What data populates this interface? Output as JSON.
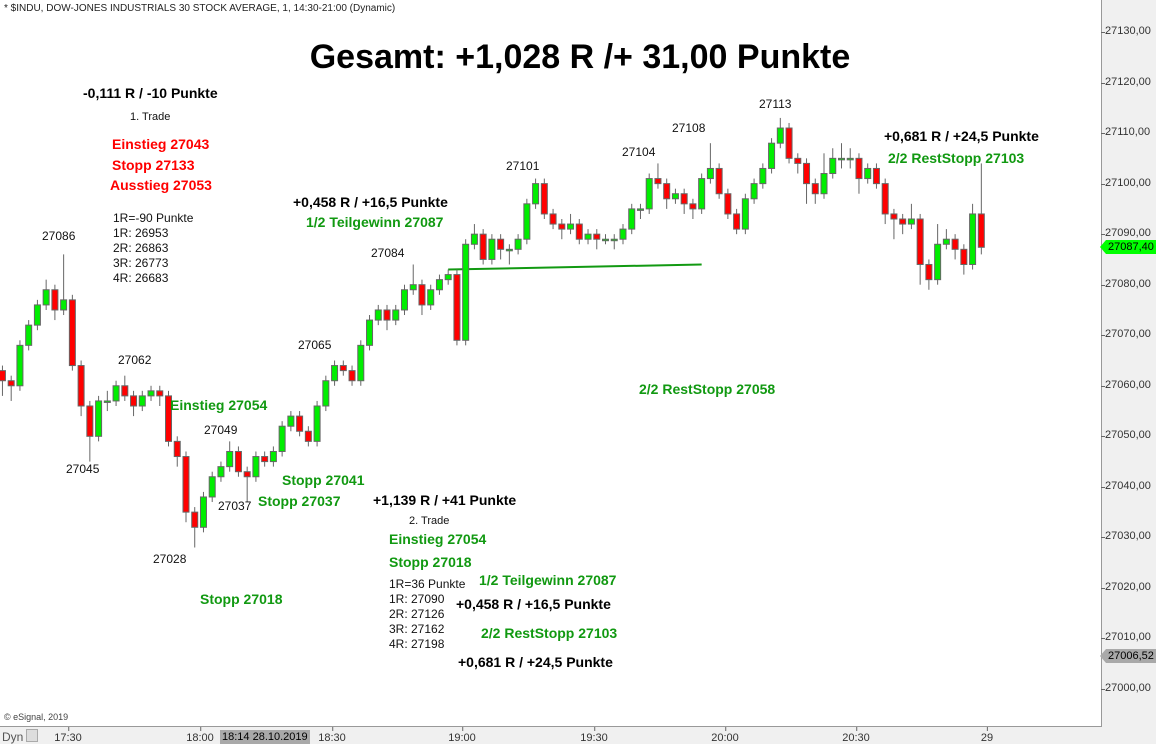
{
  "header": {
    "title": "* $INDU, DOW-JONES INDUSTRIALS 30 STOCK AVERAGE, 1, 14:30-21:00 (Dynamic)"
  },
  "footer": {
    "copyright": "© eSignal, 2019",
    "dyn_label": "Dyn",
    "cursor_time": "18:14 28.10.2019"
  },
  "colors": {
    "up": "#00ee00",
    "down": "#ff0000",
    "wick": "#666666",
    "trendline": "#119911",
    "last_price_tag": "#00ff00",
    "other_tag": "#a9a9a9"
  },
  "annotations": {
    "title": "Gesamt: +1,028 R /+ 31,00 Punkte",
    "trade1": {
      "result": "-0,111 R / -10 Punkte",
      "label": "1. Trade",
      "entry": "Einstieg 27043",
      "stop": "Stopp 27133",
      "exit": "Ausstieg 27053",
      "r_lines": [
        "1R=-90 Punkte",
        "1R: 26953",
        "2R: 26863",
        "3R: 26773",
        "4R: 26683"
      ]
    },
    "trade2": {
      "result": "+1,139 R / +41 Punkte",
      "label": "2. Trade",
      "entry": "Einstieg 27054",
      "stop": "Stopp 27018",
      "r_lines": [
        "1R=36 Punkte",
        "1R: 27090",
        "2R: 27126",
        "3R: 27162",
        "4R: 27198"
      ],
      "partial": "1/2 Teilgewinn 27087",
      "partial_result": "+0,458 R / +16,5 Punkte",
      "rest": "2/2 RestStopp 27103",
      "rest_result": "+0,681 R / +24,5 Punkte"
    },
    "chart_marks": {
      "entry": "Einstieg 27054",
      "stop_41": "Stopp 27041",
      "stop_37": "Stopp 27037",
      "stop_18": "Stopp 27018",
      "partial_result": "+0,458 R / +16,5 Punkte",
      "partial": "1/2 Teilgewinn 27087",
      "rest_58": "2/2 RestStopp 27058",
      "rest_result": "+0,681 R / +24,5 Punkte",
      "rest_103": "2/2 RestStopp 27103"
    },
    "price_labels": [
      "27086",
      "27062",
      "27045",
      "27049",
      "27037",
      "27028",
      "27065",
      "27084",
      "27101",
      "27104",
      "27108",
      "27113"
    ]
  },
  "chart_data": {
    "type": "candlestick",
    "title": "",
    "x_tick_labels": [
      "17:30",
      "18:00",
      "18:30",
      "19:00",
      "19:30",
      "20:00",
      "20:30",
      "29"
    ],
    "y_tick_labels": [
      "27130,00",
      "27120,00",
      "27110,00",
      "27100,00",
      "27090,00",
      "27080,00",
      "27070,00",
      "27060,00",
      "27050,00",
      "27040,00",
      "27030,00",
      "27020,00",
      "27010,00",
      "27000,00"
    ],
    "ylim": [
      27000,
      27130
    ],
    "grid": false,
    "last_price": "27087,40",
    "marker_price": "27006,52",
    "trendline": {
      "from": [
        "18:57",
        27083
      ],
      "to": [
        "19:55",
        27084
      ]
    },
    "start_time": "17:15",
    "interval_minutes": 2,
    "candles_ohlc": [
      [
        27063,
        27064,
        27058,
        27061
      ],
      [
        27061,
        27062,
        27057,
        27060
      ],
      [
        27060,
        27069,
        27059,
        27068
      ],
      [
        27068,
        27073,
        27067,
        27072
      ],
      [
        27072,
        27077,
        27071,
        27076
      ],
      [
        27076,
        27081,
        27075,
        27079
      ],
      [
        27079,
        27080,
        27073,
        27075
      ],
      [
        27075,
        27086,
        27074,
        27077
      ],
      [
        27077,
        27078,
        27063,
        27064
      ],
      [
        27064,
        27065,
        27054,
        27056
      ],
      [
        27056,
        27057,
        27045,
        27050
      ],
      [
        27050,
        27058,
        27049,
        27057
      ],
      [
        27057,
        27059,
        27055,
        27057
      ],
      [
        27057,
        27061,
        27056,
        27060
      ],
      [
        27060,
        27062,
        27057,
        27058
      ],
      [
        27058,
        27059,
        27054,
        27056
      ],
      [
        27056,
        27059,
        27055,
        27058
      ],
      [
        27058,
        27060,
        27057,
        27059
      ],
      [
        27059,
        27060,
        27056,
        27058
      ],
      [
        27058,
        27059,
        27048,
        27049
      ],
      [
        27049,
        27050,
        27044,
        27046
      ],
      [
        27046,
        27047,
        27033,
        27035
      ],
      [
        27035,
        27036,
        27028,
        27032
      ],
      [
        27032,
        27039,
        27031,
        27038
      ],
      [
        27038,
        27043,
        27037,
        27042
      ],
      [
        27042,
        27045,
        27041,
        27044
      ],
      [
        27044,
        27049,
        27043,
        27047
      ],
      [
        27047,
        27048,
        27042,
        27043
      ],
      [
        27043,
        27044,
        27037,
        27042
      ],
      [
        27042,
        27047,
        27041,
        27046
      ],
      [
        27046,
        27047,
        27044,
        27045
      ],
      [
        27045,
        27048,
        27044,
        27047
      ],
      [
        27047,
        27053,
        27046,
        27052
      ],
      [
        27052,
        27055,
        27051,
        27054
      ],
      [
        27054,
        27055,
        27050,
        27051
      ],
      [
        27051,
        27052,
        27048,
        27049
      ],
      [
        27049,
        27057,
        27048,
        27056
      ],
      [
        27056,
        27062,
        27055,
        27061
      ],
      [
        27061,
        27065,
        27060,
        27064
      ],
      [
        27064,
        27065,
        27062,
        27063
      ],
      [
        27063,
        27064,
        27060,
        27061
      ],
      [
        27061,
        27069,
        27060,
        27068
      ],
      [
        27068,
        27074,
        27067,
        27073
      ],
      [
        27073,
        27076,
        27072,
        27075
      ],
      [
        27075,
        27076,
        27071,
        27073
      ],
      [
        27073,
        27076,
        27072,
        27075
      ],
      [
        27075,
        27080,
        27074,
        27079
      ],
      [
        27079,
        27084,
        27078,
        27080
      ],
      [
        27080,
        27081,
        27074,
        27076
      ],
      [
        27076,
        27080,
        27075,
        27079
      ],
      [
        27079,
        27082,
        27078,
        27081
      ],
      [
        27081,
        27083,
        27080,
        27082
      ],
      [
        27082,
        27083,
        27068,
        27069
      ],
      [
        27069,
        27089,
        27068,
        27088
      ],
      [
        27088,
        27092,
        27087,
        27090
      ],
      [
        27090,
        27091,
        27084,
        27085
      ],
      [
        27085,
        27090,
        27084,
        27089
      ],
      [
        27089,
        27090,
        27085,
        27087
      ],
      [
        27087,
        27088,
        27084,
        27087
      ],
      [
        27087,
        27090,
        27086,
        27089
      ],
      [
        27089,
        27097,
        27088,
        27096
      ],
      [
        27096,
        27101,
        27095,
        27100
      ],
      [
        27100,
        27101,
        27093,
        27094
      ],
      [
        27094,
        27095,
        27091,
        27092
      ],
      [
        27092,
        27093,
        27089,
        27091
      ],
      [
        27091,
        27094,
        27090,
        27092
      ],
      [
        27092,
        27093,
        27088,
        27089
      ],
      [
        27089,
        27091,
        27088,
        27090
      ],
      [
        27090,
        27091,
        27087,
        27089
      ],
      [
        27089,
        27090,
        27088,
        27089
      ],
      [
        27089,
        27090,
        27087,
        27089
      ],
      [
        27089,
        27092,
        27088,
        27091
      ],
      [
        27091,
        27096,
        27090,
        27095
      ],
      [
        27095,
        27096,
        27093,
        27095
      ],
      [
        27095,
        27102,
        27094,
        27101
      ],
      [
        27101,
        27104,
        27099,
        27100
      ],
      [
        27100,
        27101,
        27095,
        27097
      ],
      [
        27097,
        27099,
        27096,
        27098
      ],
      [
        27098,
        27099,
        27094,
        27096
      ],
      [
        27096,
        27097,
        27093,
        27095
      ],
      [
        27095,
        27102,
        27094,
        27101
      ],
      [
        27101,
        27108,
        27100,
        27103
      ],
      [
        27103,
        27104,
        27097,
        27098
      ],
      [
        27098,
        27099,
        27093,
        27094
      ],
      [
        27094,
        27095,
        27090,
        27091
      ],
      [
        27091,
        27098,
        27090,
        27097
      ],
      [
        27097,
        27101,
        27096,
        27100
      ],
      [
        27100,
        27104,
        27099,
        27103
      ],
      [
        27103,
        27109,
        27102,
        27108
      ],
      [
        27108,
        27113,
        27107,
        27111
      ],
      [
        27111,
        27112,
        27104,
        27105
      ],
      [
        27105,
        27106,
        27102,
        27104
      ],
      [
        27104,
        27105,
        27096,
        27100
      ],
      [
        27100,
        27101,
        27096,
        27098
      ],
      [
        27098,
        27106,
        27097,
        27102
      ],
      [
        27102,
        27107,
        27101,
        27105
      ],
      [
        27105,
        27108,
        27103,
        27105
      ],
      [
        27105,
        27107,
        27103,
        27105
      ],
      [
        27105,
        27106,
        27098,
        27101
      ],
      [
        27101,
        27104,
        27100,
        27103
      ],
      [
        27103,
        27104,
        27099,
        27100
      ],
      [
        27100,
        27101,
        27092,
        27094
      ],
      [
        27094,
        27095,
        27089,
        27093
      ],
      [
        27093,
        27094,
        27090,
        27092
      ],
      [
        27092,
        27096,
        27091,
        27093
      ],
      [
        27093,
        27094,
        27080,
        27084
      ],
      [
        27084,
        27085,
        27079,
        27081
      ],
      [
        27081,
        27092,
        27080,
        27088
      ],
      [
        27088,
        27091,
        27087,
        27089
      ],
      [
        27089,
        27090,
        27085,
        27087
      ],
      [
        27087,
        27088,
        27082,
        27084
      ],
      [
        27084,
        27096,
        27083,
        27094
      ],
      [
        27094,
        27104,
        27086,
        27087.4
      ]
    ]
  }
}
